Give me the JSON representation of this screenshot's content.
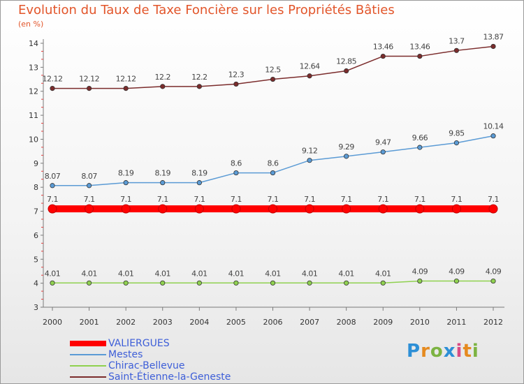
{
  "title": "Evolution du Taux de Taxe Foncière sur les Propriétés Bâties",
  "subtitle": "(en %)",
  "logo": {
    "letters": [
      "P",
      "r",
      "o",
      "x",
      "i",
      "t",
      "i"
    ],
    "colors": [
      "#2d8fd6",
      "#e58a1f",
      "#7cb342",
      "#2d8fd6",
      "#d94b84",
      "#e58a1f",
      "#7cb342"
    ]
  },
  "chart_data": {
    "type": "line",
    "x": [
      "2000",
      "2001",
      "2002",
      "2003",
      "2004",
      "2005",
      "2006",
      "2007",
      "2008",
      "2009",
      "2010",
      "2011",
      "2012"
    ],
    "ylim": [
      3,
      14
    ],
    "yticks": [
      "3",
      "4",
      "5",
      "6",
      "7",
      "8",
      "9",
      "10",
      "11",
      "12",
      "13",
      "14"
    ],
    "grid": false,
    "legend_placement": "bottom-left",
    "series": [
      {
        "name": "VALIERGUES",
        "color": "#ff0000",
        "values": [
          7.1,
          7.1,
          7.1,
          7.1,
          7.1,
          7.1,
          7.1,
          7.1,
          7.1,
          7.1,
          7.1,
          7.1,
          7.1
        ],
        "labels": [
          "7.1",
          "7.1",
          "7.1",
          "7.1",
          "7.1",
          "7.1",
          "7.1",
          "7.1",
          "7.1",
          "7.1",
          "7.1",
          "7.1",
          "7.1"
        ]
      },
      {
        "name": "Mestes",
        "color": "#5b9bd5",
        "values": [
          8.07,
          8.07,
          8.19,
          8.19,
          8.19,
          8.6,
          8.6,
          9.12,
          9.29,
          9.47,
          9.66,
          9.85,
          10.14
        ],
        "labels": [
          "8.07",
          "8.07",
          "8.19",
          "8.19",
          "8.19",
          "8.6",
          "8.6",
          "9.12",
          "9.29",
          "9.47",
          "9.66",
          "9.85",
          "10.14"
        ]
      },
      {
        "name": "Chirac-Bellevue",
        "color": "#8fd14f",
        "values": [
          4.01,
          4.01,
          4.01,
          4.01,
          4.01,
          4.01,
          4.01,
          4.01,
          4.01,
          4.01,
          4.09,
          4.09,
          4.09
        ],
        "labels": [
          "4.01",
          "4.01",
          "4.01",
          "4.01",
          "4.01",
          "4.01",
          "4.01",
          "4.01",
          "4.01",
          "4.01",
          "4.09",
          "4.09",
          "4.09"
        ]
      },
      {
        "name": "Saint-Étienne-la-Geneste",
        "color": "#7b2c2c",
        "values": [
          12.12,
          12.12,
          12.12,
          12.2,
          12.2,
          12.3,
          12.5,
          12.64,
          12.85,
          13.46,
          13.46,
          13.7,
          13.87
        ],
        "labels": [
          "12.12",
          "12.12",
          "12.12",
          "12.2",
          "12.2",
          "12.3",
          "12.5",
          "12.64",
          "12.85",
          "13.46",
          "13.46",
          "13.7",
          "13.87"
        ]
      }
    ]
  }
}
